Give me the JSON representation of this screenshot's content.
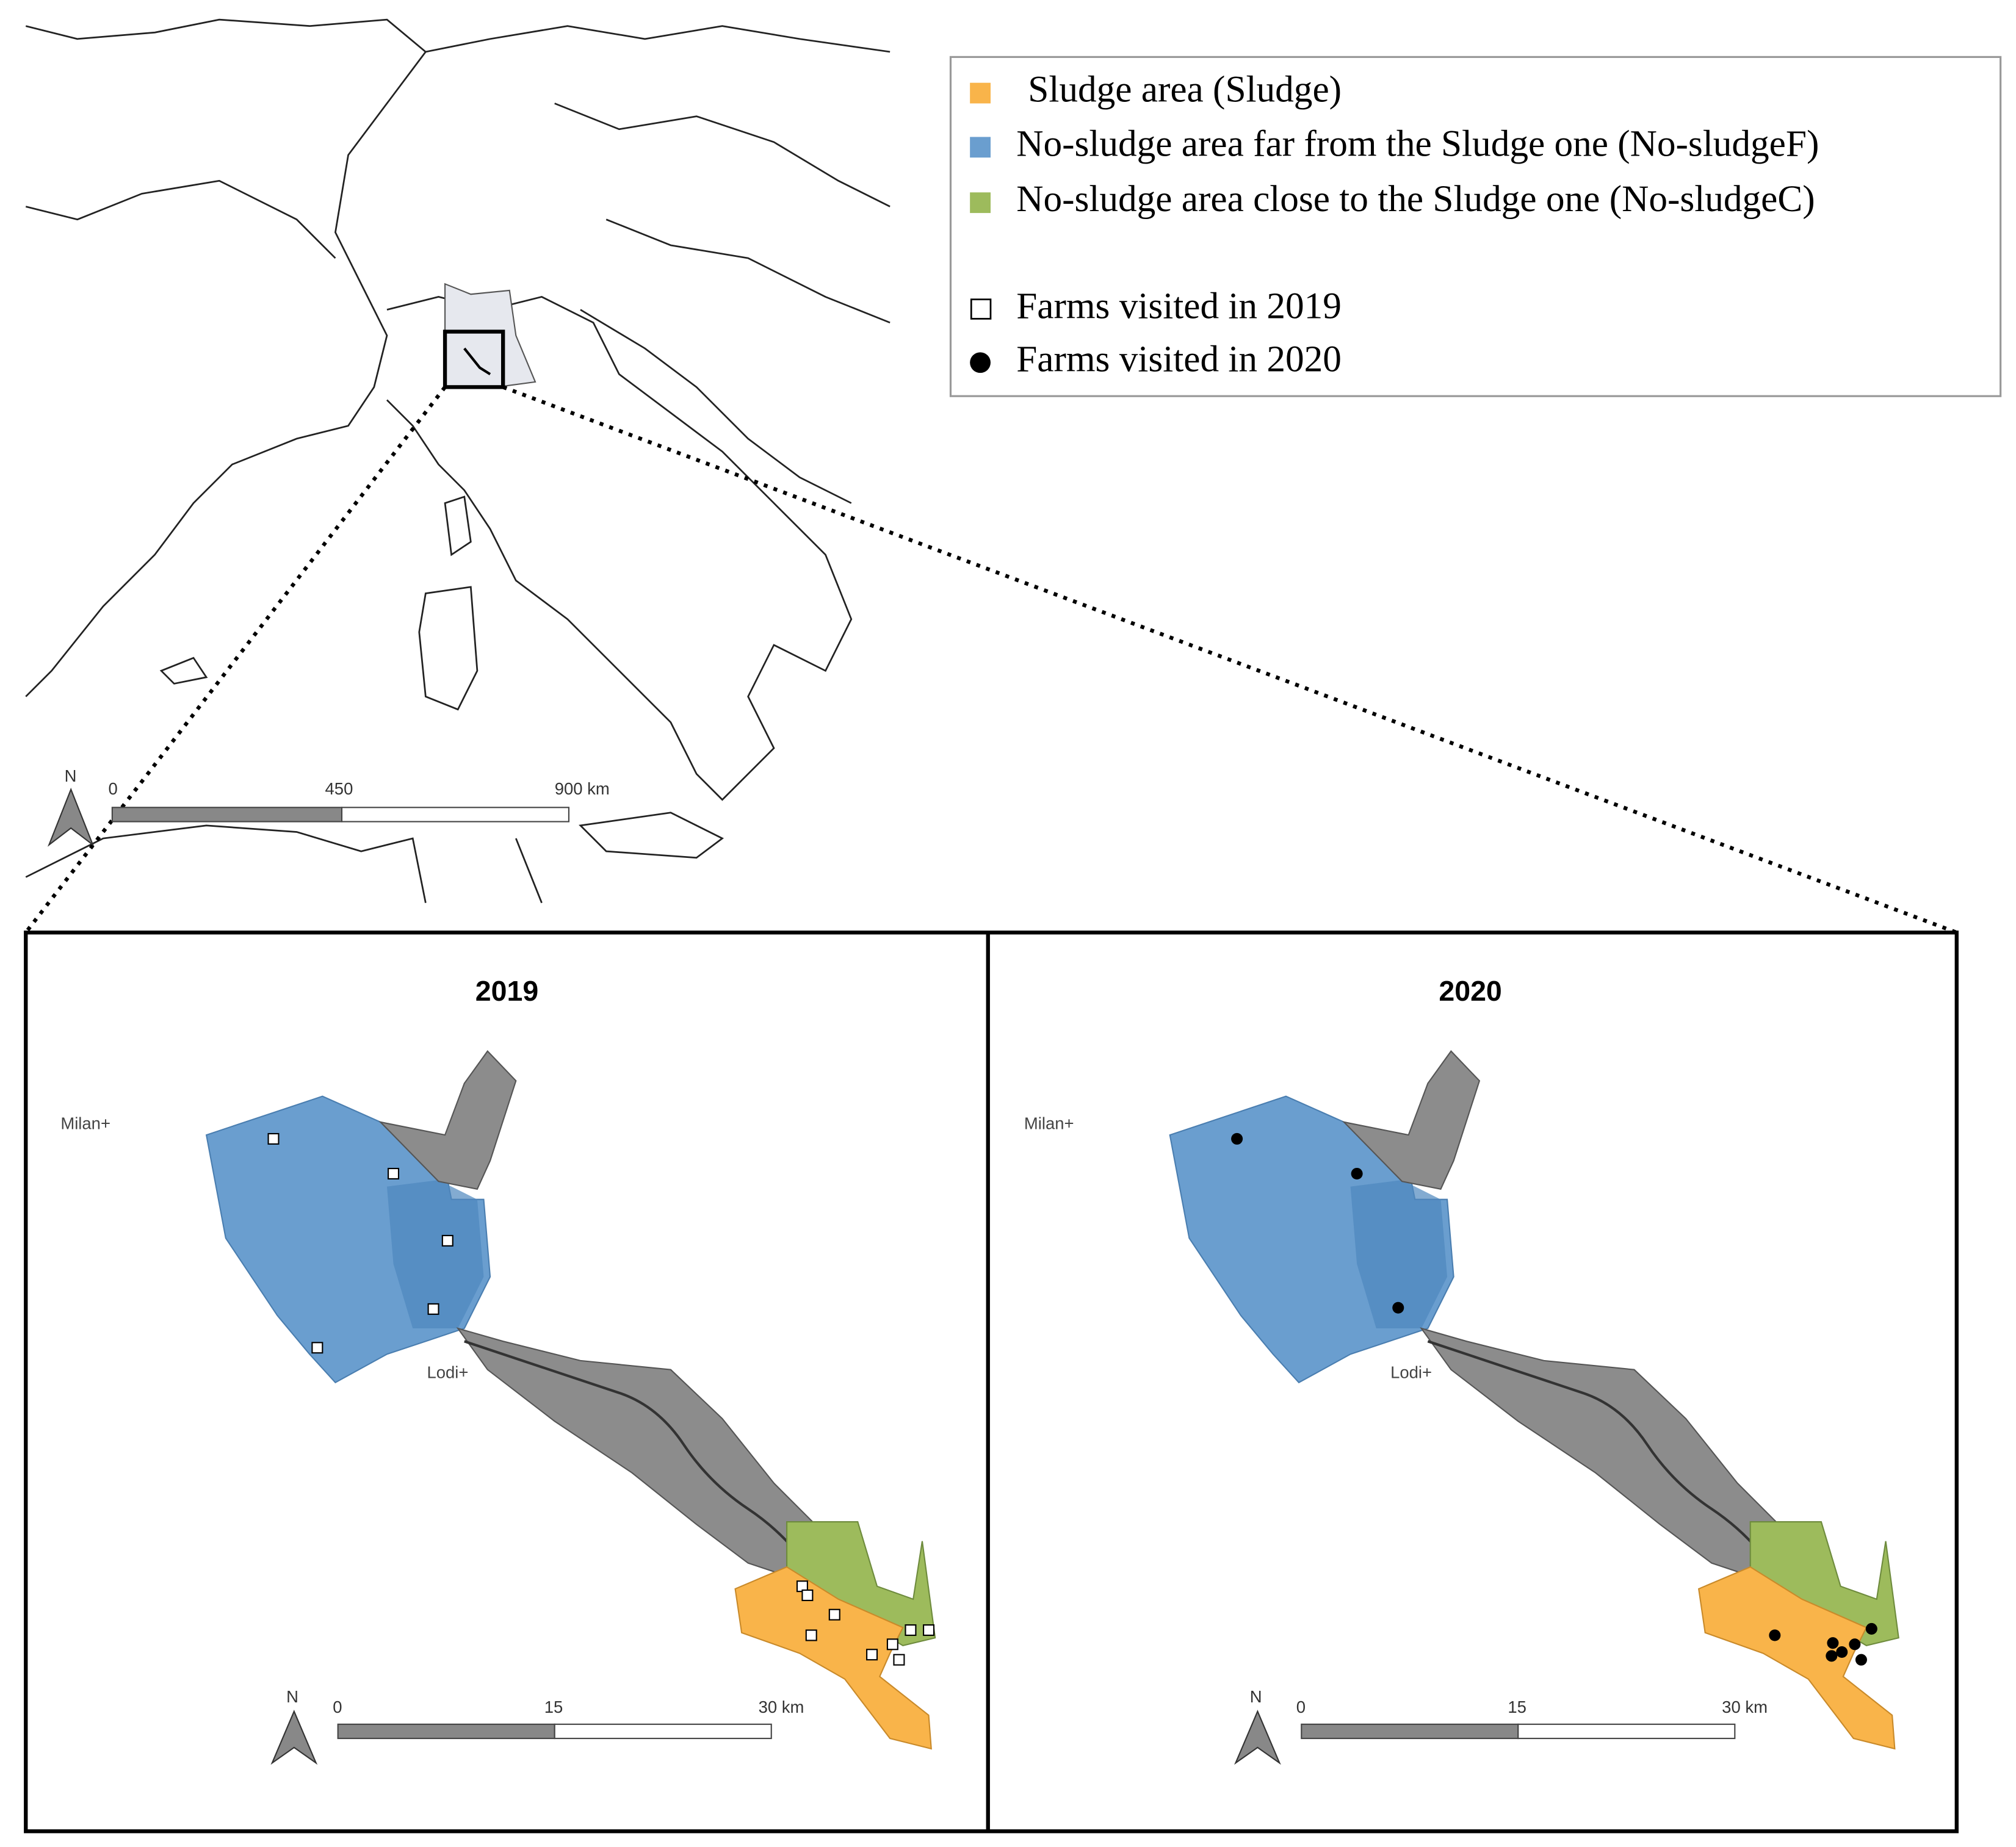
{
  "legend": {
    "items": [
      {
        "label": "Sludge area (Sludge)"
      },
      {
        "label": "No-sludge area far from the Sludge one (No-sludgeF)"
      },
      {
        "label": "No-sludge area close to the Sludge one (No-sludgeC)"
      },
      {
        "label": "Farms visited in 2019"
      },
      {
        "label": "Farms visited in 2020"
      }
    ]
  },
  "overview": {
    "north": "N",
    "scale_labels": [
      "0",
      "450",
      "900 km"
    ]
  },
  "panels": [
    {
      "title": "2019",
      "cities": [
        "Milan+",
        "Lodi+"
      ],
      "north": "N",
      "scale_labels": [
        "0",
        "15",
        "30 km"
      ]
    },
    {
      "title": "2020",
      "cities": [
        "Milan+",
        "Lodi+"
      ],
      "north": "N",
      "scale_labels": [
        "0",
        "15",
        "30 km"
      ]
    }
  ]
}
